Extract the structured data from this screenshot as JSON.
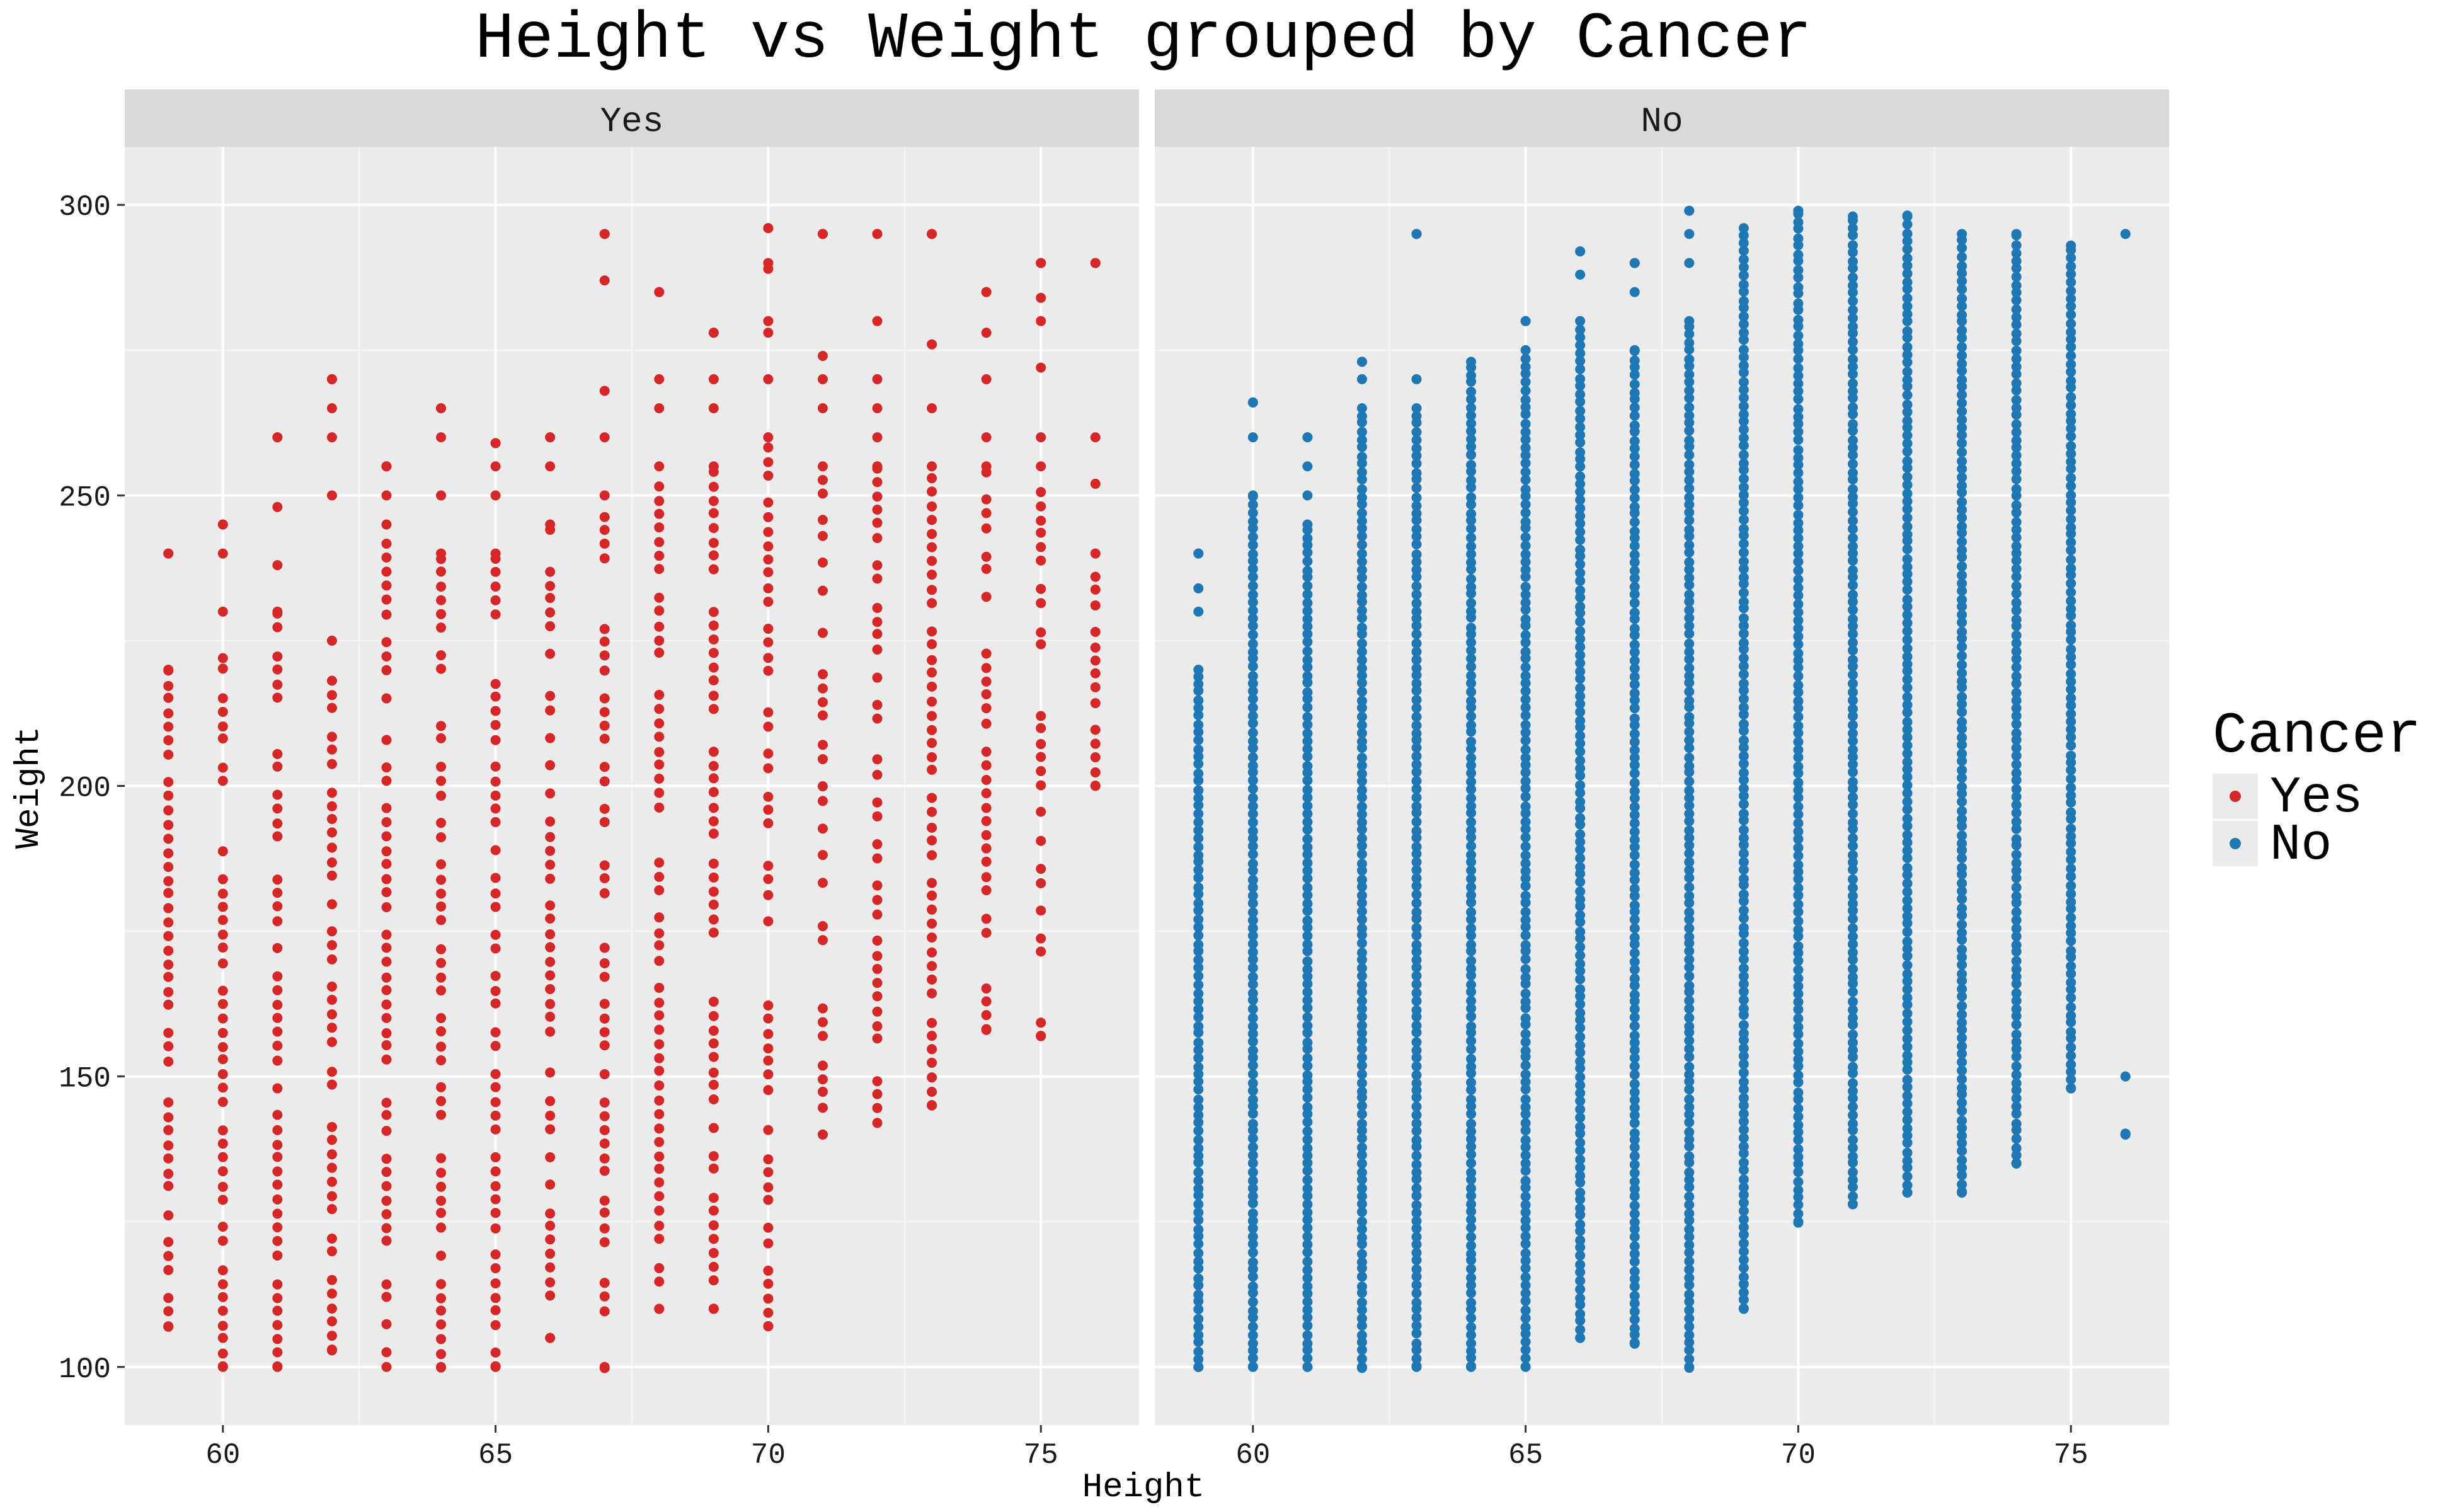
{
  "chart_data": {
    "type": "scatter",
    "title": "Height vs Weight grouped by Cancer",
    "xlabel": "Height",
    "ylabel": "Weight",
    "xlim": [
      58.2,
      76.8
    ],
    "ylim": [
      90,
      310
    ],
    "x_ticks": [
      60,
      65,
      70,
      75
    ],
    "y_ticks": [
      100,
      150,
      200,
      250,
      300
    ],
    "x_tick_labels": [
      "60",
      "65",
      "70",
      "75"
    ],
    "y_tick_labels": [
      "100",
      "150",
      "200",
      "250",
      "300"
    ],
    "grid": true,
    "legend": {
      "title": "Cancer",
      "position": "right",
      "entries": [
        "Yes",
        "No"
      ]
    },
    "facets": [
      {
        "label": "Yes",
        "color": "#d62728",
        "columns": [
          {
            "x": 59,
            "y_min": 107,
            "y_max": 240,
            "outliers": [
              220,
              240
            ]
          },
          {
            "x": 60,
            "y_min": 100,
            "y_max": 245,
            "outliers": [
              222,
              230,
              240,
              245
            ]
          },
          {
            "x": 61,
            "y_min": 100,
            "y_max": 260,
            "outliers": [
              230,
              238,
              248,
              260
            ]
          },
          {
            "x": 62,
            "y_min": 103,
            "y_max": 270,
            "outliers": [
              225,
              250,
              260,
              265,
              270
            ]
          },
          {
            "x": 63,
            "y_min": 100,
            "y_max": 255,
            "outliers": [
              245,
              250,
              255
            ]
          },
          {
            "x": 64,
            "y_min": 100,
            "y_max": 265,
            "outliers": [
              240,
              250,
              260,
              265
            ]
          },
          {
            "x": 65,
            "y_min": 100,
            "y_max": 259,
            "outliers": [
              240,
              250,
              255,
              259
            ]
          },
          {
            "x": 66,
            "y_min": 105,
            "y_max": 260,
            "outliers": [
              245,
              255,
              260
            ]
          },
          {
            "x": 67,
            "y_min": 100,
            "y_max": 295,
            "outliers": [
              250,
              260,
              268,
              287,
              295
            ]
          },
          {
            "x": 68,
            "y_min": 110,
            "y_max": 285,
            "outliers": [
              255,
              265,
              270,
              285
            ]
          },
          {
            "x": 69,
            "y_min": 110,
            "y_max": 278,
            "outliers": [
              255,
              265,
              270,
              278
            ]
          },
          {
            "x": 70,
            "y_min": 107,
            "y_max": 296,
            "outliers": [
              260,
              270,
              278,
              280,
              289,
              290,
              296
            ]
          },
          {
            "x": 71,
            "y_min": 140,
            "y_max": 295,
            "outliers": [
              255,
              265,
              270,
              274,
              295
            ]
          },
          {
            "x": 72,
            "y_min": 142,
            "y_max": 295,
            "outliers": [
              255,
              260,
              265,
              270,
              280,
              295
            ]
          },
          {
            "x": 73,
            "y_min": 145,
            "y_max": 295,
            "outliers": [
              255,
              265,
              276,
              295
            ]
          },
          {
            "x": 74,
            "y_min": 158,
            "y_max": 285,
            "outliers": [
              255,
              260,
              270,
              278,
              285
            ]
          },
          {
            "x": 75,
            "y_min": 157,
            "y_max": 290,
            "outliers": [
              255,
              260,
              272,
              280,
              284,
              290
            ]
          },
          {
            "x": 76,
            "y_min": 200,
            "y_max": 290,
            "outliers": [
              240,
              252,
              260,
              290
            ]
          }
        ]
      },
      {
        "label": "No",
        "color": "#1f77b4",
        "columns": [
          {
            "x": 59,
            "y_min": 100,
            "y_max": 240,
            "outliers": [
              220,
              230,
              234,
              240
            ]
          },
          {
            "x": 60,
            "y_min": 100,
            "y_max": 266,
            "outliers": [
              250,
              260,
              266
            ]
          },
          {
            "x": 61,
            "y_min": 100,
            "y_max": 260,
            "outliers": [
              245,
              250,
              255,
              260
            ]
          },
          {
            "x": 62,
            "y_min": 100,
            "y_max": 273,
            "outliers": [
              265,
              270,
              273
            ]
          },
          {
            "x": 63,
            "y_min": 100,
            "y_max": 295,
            "outliers": [
              265,
              270,
              295
            ]
          },
          {
            "x": 64,
            "y_min": 100,
            "y_max": 273,
            "outliers": []
          },
          {
            "x": 65,
            "y_min": 100,
            "y_max": 280,
            "outliers": [
              275,
              280
            ]
          },
          {
            "x": 66,
            "y_min": 105,
            "y_max": 292,
            "outliers": [
              280,
              288,
              292
            ]
          },
          {
            "x": 67,
            "y_min": 104,
            "y_max": 290,
            "outliers": [
              275,
              285,
              290
            ]
          },
          {
            "x": 68,
            "y_min": 100,
            "y_max": 299,
            "outliers": [
              280,
              290,
              295,
              299
            ]
          },
          {
            "x": 69,
            "y_min": 110,
            "y_max": 296,
            "outliers": []
          },
          {
            "x": 70,
            "y_min": 125,
            "y_max": 299,
            "outliers": []
          },
          {
            "x": 71,
            "y_min": 128,
            "y_max": 298,
            "outliers": []
          },
          {
            "x": 72,
            "y_min": 130,
            "y_max": 298,
            "outliers": []
          },
          {
            "x": 73,
            "y_min": 130,
            "y_max": 295,
            "outliers": []
          },
          {
            "x": 74,
            "y_min": 135,
            "y_max": 295,
            "outliers": []
          },
          {
            "x": 75,
            "y_min": 148,
            "y_max": 293,
            "outliers": []
          },
          {
            "x": 76,
            "y_min": 140,
            "y_max": 295,
            "outliers": [
              150,
              140
            ]
          }
        ]
      }
    ]
  }
}
